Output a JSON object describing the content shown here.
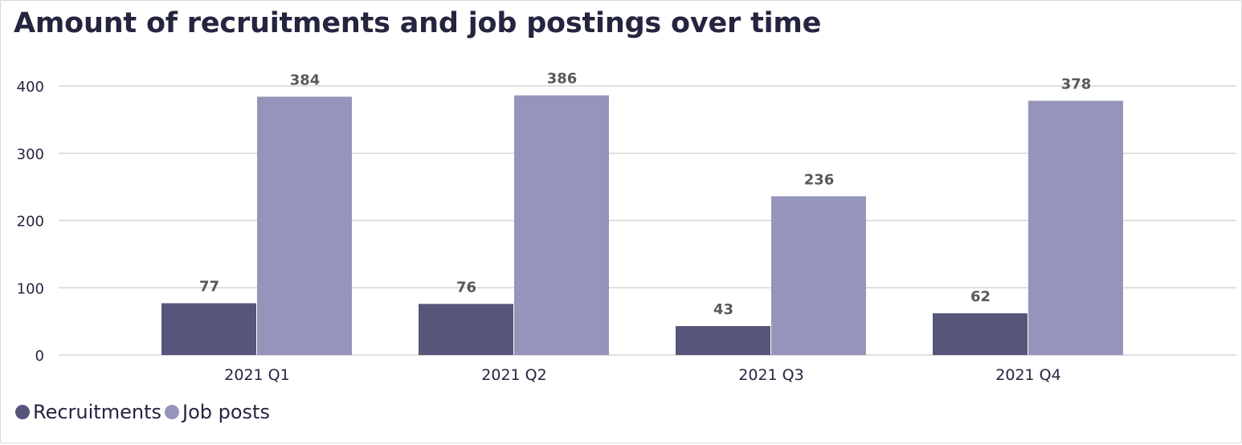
{
  "chart_data": {
    "type": "bar",
    "title": "Amount of recruitments and job postings over time",
    "categories": [
      "2021 Q1",
      "2021 Q2",
      "2021 Q3",
      "2021 Q4"
    ],
    "series": [
      {
        "name": "Recruitments",
        "values": [
          77,
          76,
          43,
          62
        ],
        "color": "#56557a"
      },
      {
        "name": "Job posts",
        "values": [
          384,
          386,
          236,
          378
        ],
        "color": "#9595bb"
      }
    ],
    "xlabel": "",
    "ylabel": "",
    "ylim": [
      0,
      400
    ],
    "yticks": [
      "0",
      "100",
      "200",
      "300",
      "400"
    ],
    "grid": true,
    "legend": "bottom-left"
  }
}
